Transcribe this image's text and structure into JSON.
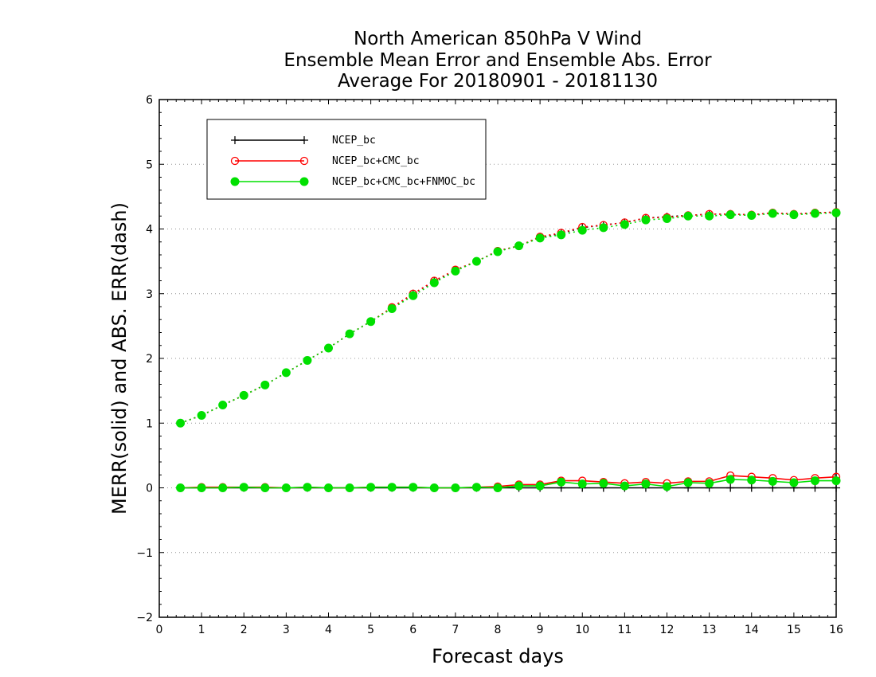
{
  "chart_data": {
    "type": "line",
    "title": [
      "North American 850hPa V Wind",
      "Ensemble Mean Error and Ensemble Abs. Error",
      "Average For 20180901 - 20181130"
    ],
    "xlabel": "Forecast days",
    "ylabel": "MERR(solid) and ABS. ERR(dash)",
    "xlim": [
      0,
      16
    ],
    "ylim": [
      -2,
      6
    ],
    "xticks": [
      "0",
      "1",
      "2",
      "3",
      "4",
      "5",
      "6",
      "7",
      "8",
      "9",
      "10",
      "11",
      "12",
      "13",
      "14",
      "15",
      "16"
    ],
    "yticks": [
      "−2",
      "−1",
      "0",
      "1",
      "2",
      "3",
      "4",
      "5",
      "6"
    ],
    "grid": "horizontal dotted",
    "legend_position": "top-left",
    "x": [
      0.5,
      1,
      1.5,
      2,
      2.5,
      3,
      3.5,
      4,
      4.5,
      5,
      5.5,
      6,
      6.5,
      7,
      7.5,
      8,
      8.5,
      9,
      9.5,
      10,
      10.5,
      11,
      11.5,
      12,
      12.5,
      13,
      13.5,
      14,
      14.5,
      15,
      15.5,
      16
    ],
    "series": [
      {
        "name": "NCEP_bc",
        "color": "#000000",
        "marker": "plus",
        "merr": [
          0,
          0,
          0,
          0,
          0,
          0,
          0,
          0,
          0,
          0,
          0,
          0,
          0,
          0,
          0,
          0,
          0,
          0,
          0,
          0,
          0,
          0,
          0,
          0,
          0,
          0,
          0,
          0,
          0,
          0,
          0,
          0
        ],
        "abs_err": [
          1.0,
          1.12,
          1.28,
          1.43,
          1.59,
          1.78,
          1.97,
          2.16,
          2.38,
          2.57,
          2.78,
          3.0,
          3.19,
          3.36,
          3.5,
          3.66,
          3.74,
          3.87,
          3.93,
          4.02,
          4.06,
          4.1,
          4.17,
          4.19,
          4.21,
          4.23,
          4.23,
          4.22,
          4.25,
          4.23,
          4.25,
          4.26
        ]
      },
      {
        "name": "NCEP_bc+CMC_bc",
        "color": "#ff0000",
        "marker": "open-circle",
        "merr": [
          0.0,
          0.01,
          0.01,
          0.01,
          0.01,
          0.0,
          0.01,
          0.0,
          0.0,
          0.01,
          0.01,
          0.01,
          0.0,
          0.0,
          0.01,
          0.02,
          0.05,
          0.05,
          0.11,
          0.11,
          0.09,
          0.07,
          0.09,
          0.07,
          0.1,
          0.1,
          0.19,
          0.17,
          0.15,
          0.12,
          0.15,
          0.17
        ],
        "abs_err": [
          1.0,
          1.12,
          1.28,
          1.43,
          1.59,
          1.78,
          1.97,
          2.16,
          2.38,
          2.57,
          2.79,
          3.0,
          3.2,
          3.37,
          3.5,
          3.66,
          3.74,
          3.88,
          3.94,
          4.03,
          4.06,
          4.1,
          4.17,
          4.18,
          4.21,
          4.23,
          4.23,
          4.22,
          4.25,
          4.23,
          4.25,
          4.26
        ]
      },
      {
        "name": "NCEP_bc+CMC_bc+FNMOC_bc",
        "color": "#00e000",
        "marker": "filled-circle",
        "merr": [
          0.0,
          0.0,
          0.0,
          0.01,
          0.0,
          0.0,
          0.01,
          0.0,
          0.0,
          0.01,
          0.01,
          0.01,
          0.0,
          0.0,
          0.01,
          0.0,
          0.03,
          0.03,
          0.09,
          0.06,
          0.07,
          0.03,
          0.06,
          0.02,
          0.08,
          0.07,
          0.13,
          0.12,
          0.1,
          0.08,
          0.11,
          0.11
        ],
        "abs_err": [
          1.0,
          1.12,
          1.28,
          1.43,
          1.59,
          1.78,
          1.97,
          2.16,
          2.38,
          2.57,
          2.77,
          2.97,
          3.17,
          3.35,
          3.5,
          3.65,
          3.74,
          3.86,
          3.91,
          3.98,
          4.02,
          4.07,
          4.14,
          4.16,
          4.2,
          4.2,
          4.22,
          4.21,
          4.24,
          4.22,
          4.24,
          4.25
        ]
      }
    ]
  }
}
